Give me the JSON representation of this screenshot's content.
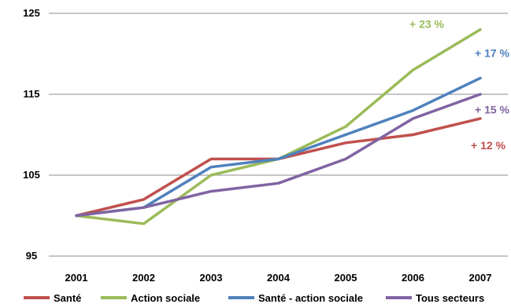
{
  "chart_data": {
    "type": "line",
    "title": "",
    "xlabel": "",
    "ylabel": "",
    "x": [
      "2001",
      "2002",
      "2003",
      "2004",
      "2005",
      "2006",
      "2007"
    ],
    "ylim": [
      95,
      125
    ],
    "yticks": [
      95,
      105,
      115,
      125
    ],
    "grid": true,
    "legend_position": "bottom",
    "series": [
      {
        "name": "Santé",
        "color": "#c0504d",
        "values": [
          100,
          102,
          107,
          107,
          109,
          110,
          112
        ],
        "annotation": "+ 12 %"
      },
      {
        "name": "Action sociale",
        "color": "#9bbb59",
        "values": [
          100,
          99,
          105,
          107,
          111,
          118,
          123
        ],
        "annotation": "+ 23 %"
      },
      {
        "name": "Santé - action sociale",
        "color": "#4f81bd",
        "values": [
          100,
          101,
          106,
          107,
          110,
          113,
          117
        ],
        "annotation": "+ 17 %"
      },
      {
        "name": "Tous secteurs",
        "color": "#8064a2",
        "values": [
          100,
          101,
          103,
          104,
          107,
          112,
          115
        ],
        "annotation": "+ 15 %"
      }
    ]
  }
}
